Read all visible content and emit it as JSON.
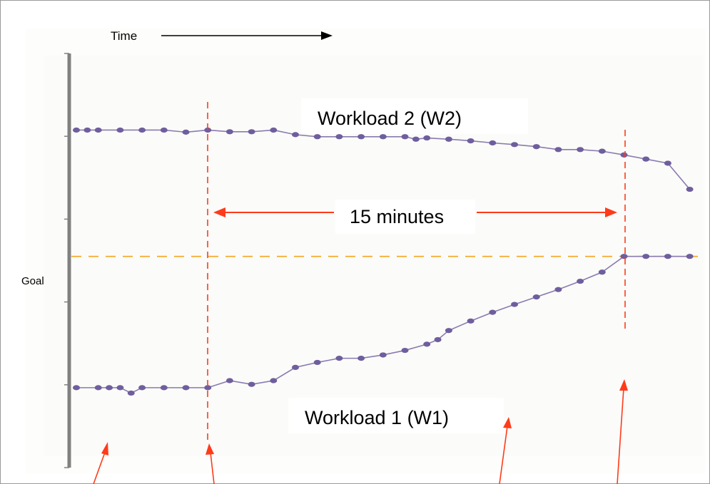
{
  "chart_data": {
    "type": "line",
    "xlabel": "Time",
    "goal_label": "Goal",
    "duration_label": "15 minutes",
    "colors": {
      "series": "#8a7bb0",
      "marker": "#6f5e9e",
      "goal_line": "#f4a623",
      "marker_line": "#ff3b1a",
      "axis": "#808080",
      "plot_bg": "#fbfbf9"
    },
    "ylim": [
      0,
      100
    ],
    "goal": 51,
    "duration_window": {
      "start_index": 6,
      "end_index": 25
    },
    "series": [
      {
        "name": "Workload 2 (W2)",
        "x": [
          0,
          0.5,
          1,
          2,
          3,
          4,
          5,
          6,
          7,
          8,
          9,
          10,
          11,
          12,
          13,
          14,
          15,
          15.5,
          16,
          17,
          18,
          19,
          20,
          21,
          22,
          23,
          24,
          25,
          26,
          27,
          28
        ],
        "y": [
          81.5,
          81.5,
          81.5,
          81.5,
          81.5,
          81.5,
          81.0,
          81.5,
          81.1,
          81.1,
          81.5,
          80.4,
          79.9,
          79.9,
          79.9,
          79.9,
          79.9,
          79.3,
          79.6,
          79.3,
          78.9,
          78.4,
          78.0,
          77.5,
          76.8,
          76.8,
          76.4,
          75.5,
          74.5,
          73.5,
          67.2
        ]
      },
      {
        "name": "Workload 1 (W1)",
        "x": [
          0,
          1,
          1.5,
          2,
          2.5,
          3,
          4,
          5,
          6,
          7,
          8,
          9,
          10,
          11,
          12,
          13,
          14,
          15,
          16,
          16.5,
          17,
          18,
          19,
          20,
          21,
          22,
          23,
          24,
          25,
          26,
          27,
          28
        ],
        "y": [
          19.3,
          19.3,
          19.3,
          19.3,
          18.0,
          19.3,
          19.3,
          19.3,
          19.3,
          21.0,
          20.1,
          21.0,
          24.2,
          25.4,
          26.4,
          26.4,
          27.2,
          28.3,
          29.8,
          30.9,
          33.1,
          35.4,
          37.5,
          39.4,
          41.2,
          43.0,
          45.0,
          47.2,
          51.0,
          51.0,
          51.0,
          51.0
        ]
      }
    ]
  }
}
